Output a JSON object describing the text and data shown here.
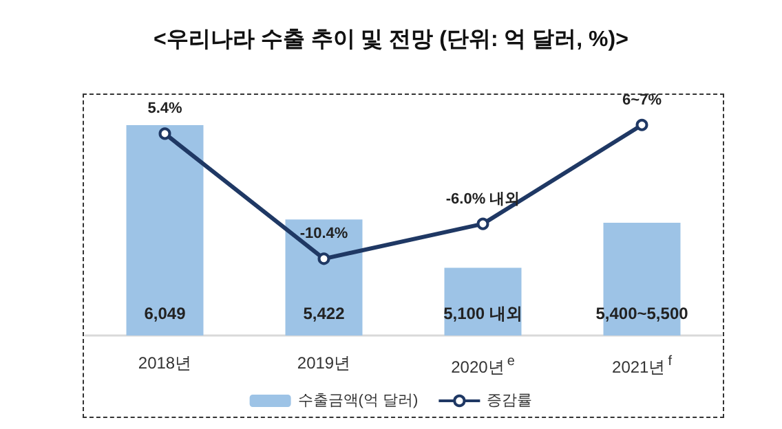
{
  "chart_data": {
    "type": "bar",
    "title": "<우리나라 수출 추이 및 전망 (단위: 억 달러, %)>",
    "categories": [
      "2018년",
      "2019년",
      "2020년$^{e}$",
      "2021년$^{f}$"
    ],
    "ylim": [
      4650,
      6250
    ],
    "y2lim": [
      -20.1,
      10.3
    ],
    "tick_labels": "x",
    "grid": false,
    "legend": "bottom",
    "marker": "circle",
    "series": [
      {
        "name": "수출금액(억 달러)",
        "color": "#9dc3e6",
        "values": [
          6049,
          5422,
          5100,
          5400
        ],
        "value_labels": [
          "6,049",
          "5,422",
          "5,100 내외",
          "5,400~5,500"
        ]
      },
      {
        "name": "증감률",
        "type": "line",
        "axis": "y2",
        "color": "#1f3864",
        "values": [
          5.4,
          -10.4,
          -6.0,
          6.5
        ],
        "value_labels": [
          "5.4%",
          "-10.4%",
          "-6.0% 내외",
          "6~7%"
        ]
      }
    ]
  }
}
